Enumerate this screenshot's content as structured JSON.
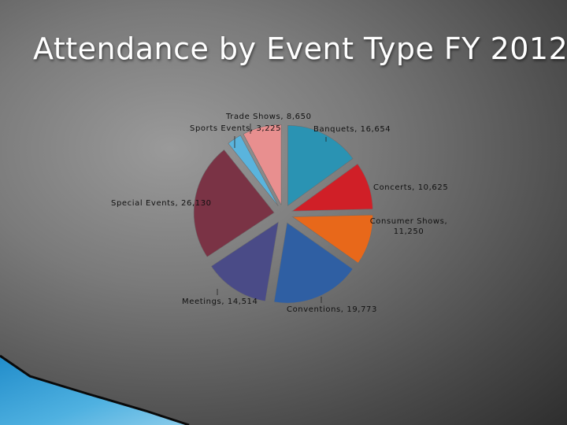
{
  "slide": {
    "title": "Attendance by Event Type FY 2012"
  },
  "chart_data": {
    "type": "pie",
    "title": "Attendance by Event Type FY 2012",
    "exploded": true,
    "start_angle_deg": 0,
    "direction": "clockwise",
    "slices": [
      {
        "name": "Banquets",
        "value": 16654,
        "color": "#2a93b3",
        "label": "Banquets, 16,654"
      },
      {
        "name": "Concerts",
        "value": 10625,
        "color": "#d01f27",
        "label": "Concerts, 10,625"
      },
      {
        "name": "Consumer Shows",
        "value": 11250,
        "color": "#e8681a",
        "label_lines": [
          "Consumer Shows,",
          "11,250"
        ]
      },
      {
        "name": "Conventions",
        "value": 19773,
        "color": "#2f5fa3",
        "label": "Conventions, 19,773"
      },
      {
        "name": "Meetings",
        "value": 14514,
        "color": "#4a4b87",
        "label": "Meetings, 14,514"
      },
      {
        "name": "Special Events",
        "value": 26130,
        "color": "#7a3345",
        "label": "Special Events, 26,130"
      },
      {
        "name": "Sports Events",
        "value": 3225,
        "color": "#5ab4dd",
        "label": "Sports Events, 3,225"
      },
      {
        "name": "Trade Shows",
        "value": 8650,
        "color": "#e88f8f",
        "label": "Trade Shows, 8,650"
      }
    ]
  }
}
